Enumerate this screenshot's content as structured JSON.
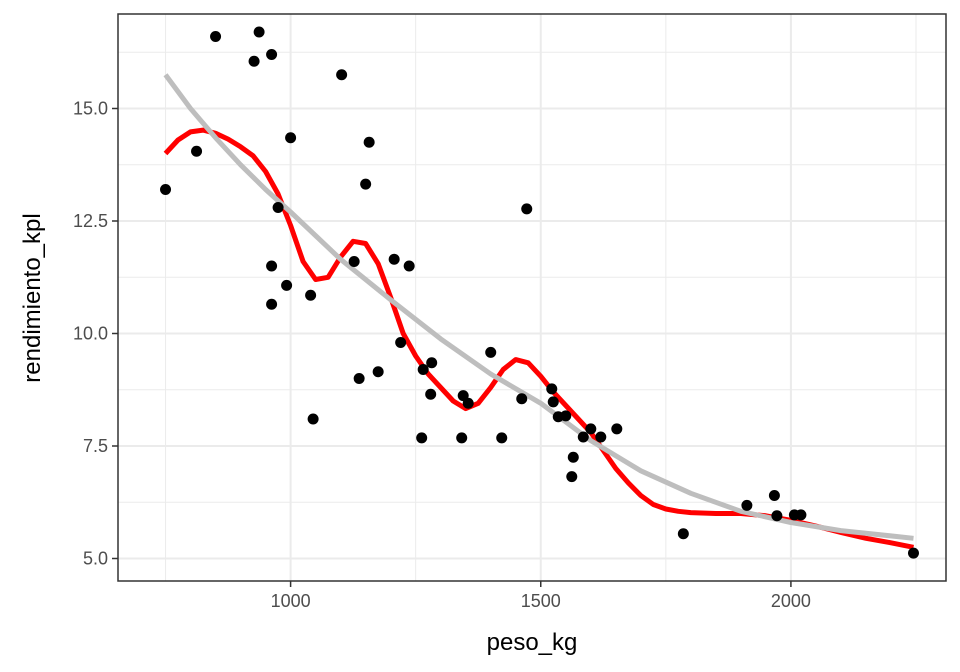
{
  "chart_data": {
    "type": "scatter",
    "title": "",
    "xlabel": "peso_kg",
    "ylabel": "rendimiento_kpl",
    "xlim": [
      655,
      2310
    ],
    "ylim": [
      4.5,
      17.1
    ],
    "x_ticks": [
      1000,
      1500,
      2000
    ],
    "x_tick_labels": [
      "1000",
      "1500",
      "2000"
    ],
    "y_ticks": [
      5.0,
      7.5,
      10.0,
      12.5,
      15.0
    ],
    "y_tick_labels": [
      "5.0",
      "7.5",
      "10.0",
      "12.5",
      "15.0"
    ],
    "grid": true,
    "legend": "none",
    "series": [
      {
        "kind": "points",
        "color": "#000000",
        "points": [
          [
            750,
            13.2
          ],
          [
            812,
            14.05
          ],
          [
            850,
            16.6
          ],
          [
            927,
            16.05
          ],
          [
            937,
            16.7
          ],
          [
            962,
            16.2
          ],
          [
            962,
            11.5
          ],
          [
            962,
            10.65
          ],
          [
            975,
            12.8
          ],
          [
            992,
            11.07
          ],
          [
            1000,
            14.35
          ],
          [
            1040,
            10.85
          ],
          [
            1045,
            8.1
          ],
          [
            1102,
            15.75
          ],
          [
            1127,
            11.6
          ],
          [
            1137,
            9.0
          ],
          [
            1150,
            13.32
          ],
          [
            1157,
            14.25
          ],
          [
            1175,
            9.15
          ],
          [
            1207,
            11.65
          ],
          [
            1220,
            9.8
          ],
          [
            1237,
            11.5
          ],
          [
            1262,
            7.68
          ],
          [
            1265,
            9.2
          ],
          [
            1280,
            8.65
          ],
          [
            1282,
            9.35
          ],
          [
            1342,
            7.68
          ],
          [
            1345,
            8.62
          ],
          [
            1355,
            8.45
          ],
          [
            1400,
            9.58
          ],
          [
            1422,
            7.68
          ],
          [
            1462,
            8.55
          ],
          [
            1472,
            12.77
          ],
          [
            1522,
            8.77
          ],
          [
            1525,
            8.48
          ],
          [
            1535,
            8.15
          ],
          [
            1550,
            8.17
          ],
          [
            1562,
            6.82
          ],
          [
            1565,
            7.25
          ],
          [
            1585,
            7.7
          ],
          [
            1600,
            7.88
          ],
          [
            1620,
            7.7
          ],
          [
            1652,
            7.88
          ],
          [
            1785,
            5.55
          ],
          [
            1912,
            6.18
          ],
          [
            1967,
            6.4
          ],
          [
            1972,
            5.95
          ],
          [
            2007,
            5.97
          ],
          [
            2020,
            5.97
          ],
          [
            2245,
            5.12
          ]
        ]
      },
      {
        "kind": "line",
        "color": "#ff0000",
        "points": [
          [
            750,
            14.0
          ],
          [
            775,
            14.3
          ],
          [
            800,
            14.48
          ],
          [
            825,
            14.52
          ],
          [
            850,
            14.45
          ],
          [
            875,
            14.32
          ],
          [
            900,
            14.15
          ],
          [
            925,
            13.95
          ],
          [
            950,
            13.6
          ],
          [
            975,
            13.1
          ],
          [
            1000,
            12.4
          ],
          [
            1025,
            11.6
          ],
          [
            1050,
            11.2
          ],
          [
            1075,
            11.25
          ],
          [
            1100,
            11.7
          ],
          [
            1125,
            12.05
          ],
          [
            1150,
            12.0
          ],
          [
            1175,
            11.55
          ],
          [
            1200,
            10.8
          ],
          [
            1225,
            10.0
          ],
          [
            1250,
            9.5
          ],
          [
            1275,
            9.1
          ],
          [
            1300,
            8.8
          ],
          [
            1325,
            8.5
          ],
          [
            1350,
            8.33
          ],
          [
            1375,
            8.45
          ],
          [
            1400,
            8.8
          ],
          [
            1425,
            9.2
          ],
          [
            1450,
            9.42
          ],
          [
            1475,
            9.35
          ],
          [
            1500,
            9.05
          ],
          [
            1525,
            8.7
          ],
          [
            1550,
            8.4
          ],
          [
            1575,
            8.1
          ],
          [
            1600,
            7.8
          ],
          [
            1625,
            7.4
          ],
          [
            1650,
            7.0
          ],
          [
            1675,
            6.68
          ],
          [
            1700,
            6.4
          ],
          [
            1725,
            6.2
          ],
          [
            1750,
            6.1
          ],
          [
            1775,
            6.05
          ],
          [
            1800,
            6.02
          ],
          [
            1850,
            6.0
          ],
          [
            1900,
            6.0
          ],
          [
            1950,
            5.95
          ],
          [
            2000,
            5.85
          ],
          [
            2050,
            5.72
          ],
          [
            2100,
            5.58
          ],
          [
            2150,
            5.45
          ],
          [
            2200,
            5.35
          ],
          [
            2245,
            5.25
          ]
        ]
      },
      {
        "kind": "line",
        "color": "#bebebe",
        "points": [
          [
            750,
            15.75
          ],
          [
            800,
            15.0
          ],
          [
            850,
            14.35
          ],
          [
            900,
            13.75
          ],
          [
            950,
            13.2
          ],
          [
            1000,
            12.7
          ],
          [
            1100,
            11.65
          ],
          [
            1200,
            10.75
          ],
          [
            1300,
            9.88
          ],
          [
            1400,
            9.1
          ],
          [
            1500,
            8.45
          ],
          [
            1600,
            7.62
          ],
          [
            1700,
            6.95
          ],
          [
            1800,
            6.45
          ],
          [
            1900,
            6.05
          ],
          [
            2000,
            5.8
          ],
          [
            2100,
            5.62
          ],
          [
            2245,
            5.45
          ]
        ]
      }
    ]
  }
}
